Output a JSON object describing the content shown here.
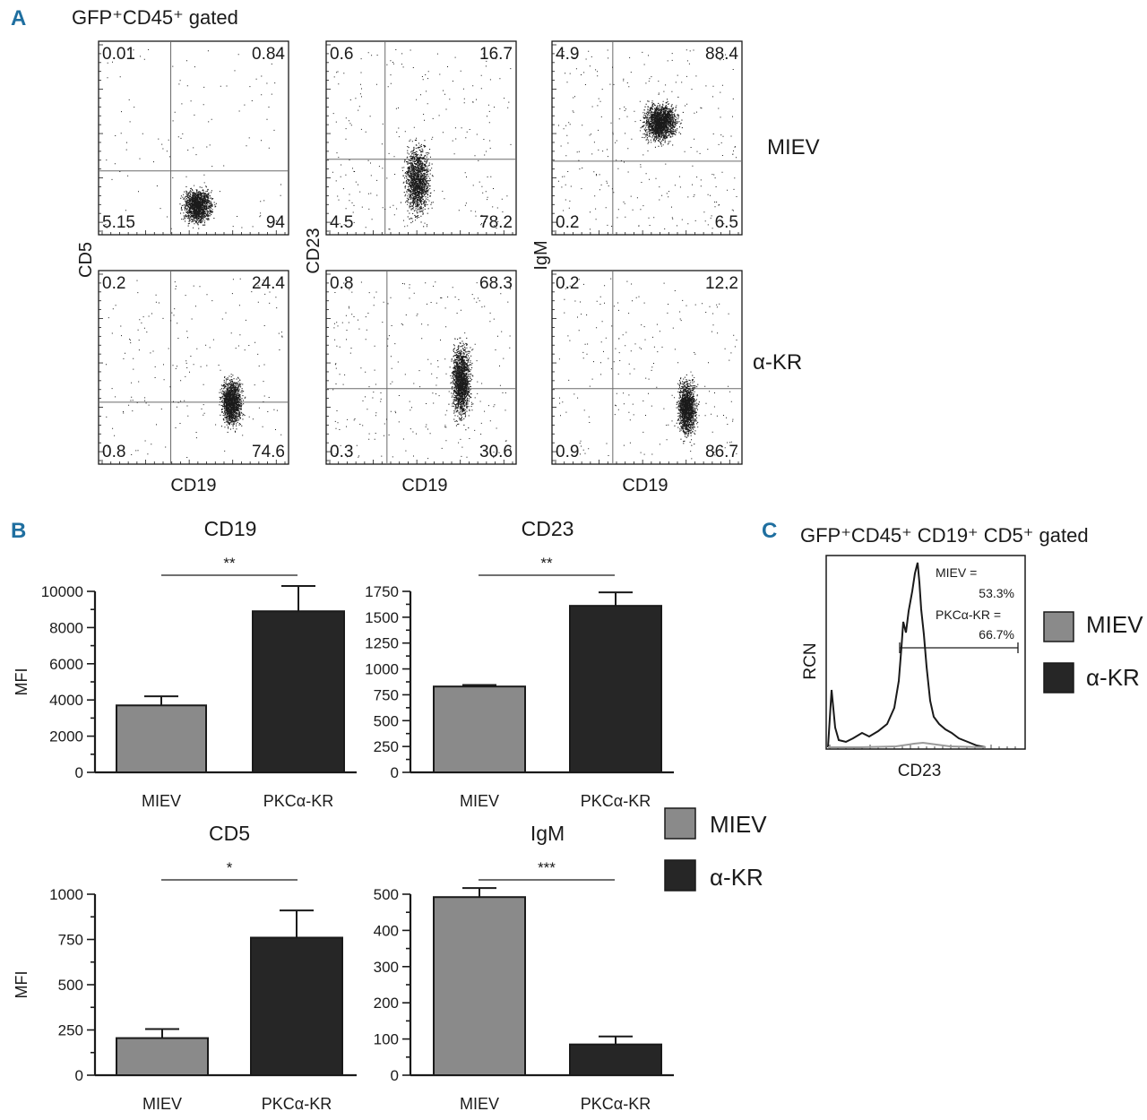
{
  "colors": {
    "miev": "#8a8a8a",
    "kr": "#262626",
    "panel_letter": "#1f6fa0",
    "axis": "#1a1a1a"
  },
  "panel_a": {
    "letter": "A",
    "title": "GFP⁺CD45⁺ gated",
    "row_labels": [
      "MIEV",
      "α-KR"
    ],
    "x_label": "CD19",
    "y_labels": [
      "CD5",
      "CD23",
      "IgM"
    ],
    "plots": [
      {
        "row": 0,
        "col": 0,
        "q": [
          "0.01",
          "0.84",
          "5.15",
          "94"
        ]
      },
      {
        "row": 0,
        "col": 1,
        "q": [
          "0.6",
          "16.7",
          "4.5",
          "78.2"
        ]
      },
      {
        "row": 0,
        "col": 2,
        "q": [
          "4.9",
          "88.4",
          "0.2",
          "6.5"
        ]
      },
      {
        "row": 1,
        "col": 0,
        "q": [
          "0.2",
          "24.4",
          "0.8",
          "74.6"
        ]
      },
      {
        "row": 1,
        "col": 1,
        "q": [
          "0.8",
          "68.3",
          "0.3",
          "30.6"
        ]
      },
      {
        "row": 1,
        "col": 2,
        "q": [
          "0.2",
          "12.2",
          "0.9",
          "86.7"
        ]
      }
    ]
  },
  "panel_b": {
    "letter": "B"
  },
  "panel_c": {
    "letter": "C",
    "title": "GFP⁺CD45⁺ CD19⁺ CD5⁺ gated",
    "x_label": "CD23",
    "y_label": "RCN",
    "annotation": [
      "MIEV =",
      "53.3%",
      "PKCα-KR =",
      "66.7%"
    ]
  },
  "legends": {
    "c": [
      "MIEV",
      "α-KR"
    ],
    "b": [
      "MIEV",
      "α-KR"
    ]
  },
  "chart_data": [
    {
      "type": "bar",
      "title": "CD19",
      "ylabel": "MFI",
      "xlabel": "",
      "categories": [
        "MIEV",
        "PKCα-KR"
      ],
      "values": [
        3700,
        8900
      ],
      "errors": [
        500,
        1400
      ],
      "ylim": [
        0,
        10000
      ],
      "yticks": [
        0,
        2000,
        4000,
        6000,
        8000,
        10000
      ],
      "significance": "**"
    },
    {
      "type": "bar",
      "title": "CD23",
      "ylabel": "",
      "xlabel": "",
      "categories": [
        "MIEV",
        "PKCα-KR"
      ],
      "values": [
        830,
        1610
      ],
      "errors": [
        15,
        130
      ],
      "ylim": [
        0,
        1750
      ],
      "yticks": [
        0,
        250,
        500,
        750,
        1000,
        1250,
        1500,
        1750
      ],
      "significance": "**"
    },
    {
      "type": "bar",
      "title": "CD5",
      "ylabel": "MFI",
      "xlabel": "",
      "categories": [
        "MIEV",
        "PKCα-KR"
      ],
      "values": [
        205,
        760
      ],
      "errors": [
        50,
        150
      ],
      "ylim": [
        0,
        1000
      ],
      "yticks": [
        0,
        250,
        500,
        750,
        1000
      ],
      "significance": "*"
    },
    {
      "type": "bar",
      "title": "IgM",
      "ylabel": "",
      "xlabel": "",
      "categories": [
        "MIEV",
        "PKCα-KR"
      ],
      "values": [
        492,
        85
      ],
      "errors": [
        25,
        22
      ],
      "ylim": [
        0,
        500
      ],
      "yticks": [
        0,
        100,
        200,
        300,
        400,
        500
      ],
      "significance": "***"
    }
  ]
}
